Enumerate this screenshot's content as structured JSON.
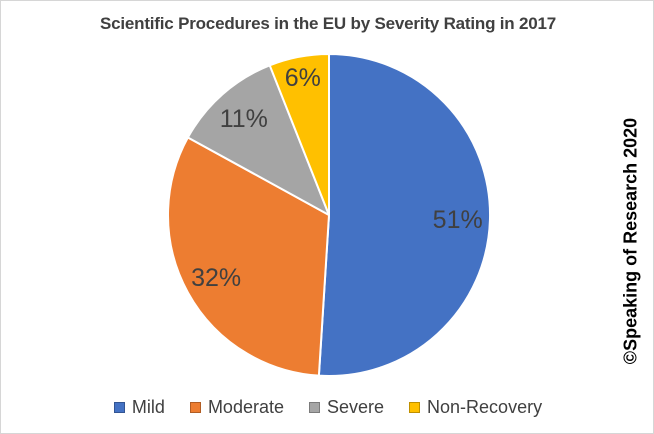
{
  "page": {
    "title": "Scientific Procedures in the EU by Severity Rating in 2017",
    "watermark": "©Speaking of Research 2020"
  },
  "chart_data": {
    "type": "pie",
    "title": "Scientific Procedures in the EU by Severity Rating in 2017",
    "categories": [
      "Mild",
      "Moderate",
      "Severe",
      "Non-Recovery"
    ],
    "values": [
      51,
      32,
      11,
      6
    ],
    "unit": "percent",
    "data_labels": [
      "51%",
      "32%",
      "11%",
      "6%"
    ],
    "colors": [
      "#4472C4",
      "#ED7D31",
      "#A5A5A5",
      "#FFC000"
    ],
    "label_color": "#404040",
    "title_color": "#404040",
    "start_angle_deg": 0,
    "direction": "clockwise",
    "legend_position": "bottom",
    "annotation": "©Speaking of Research 2020"
  }
}
